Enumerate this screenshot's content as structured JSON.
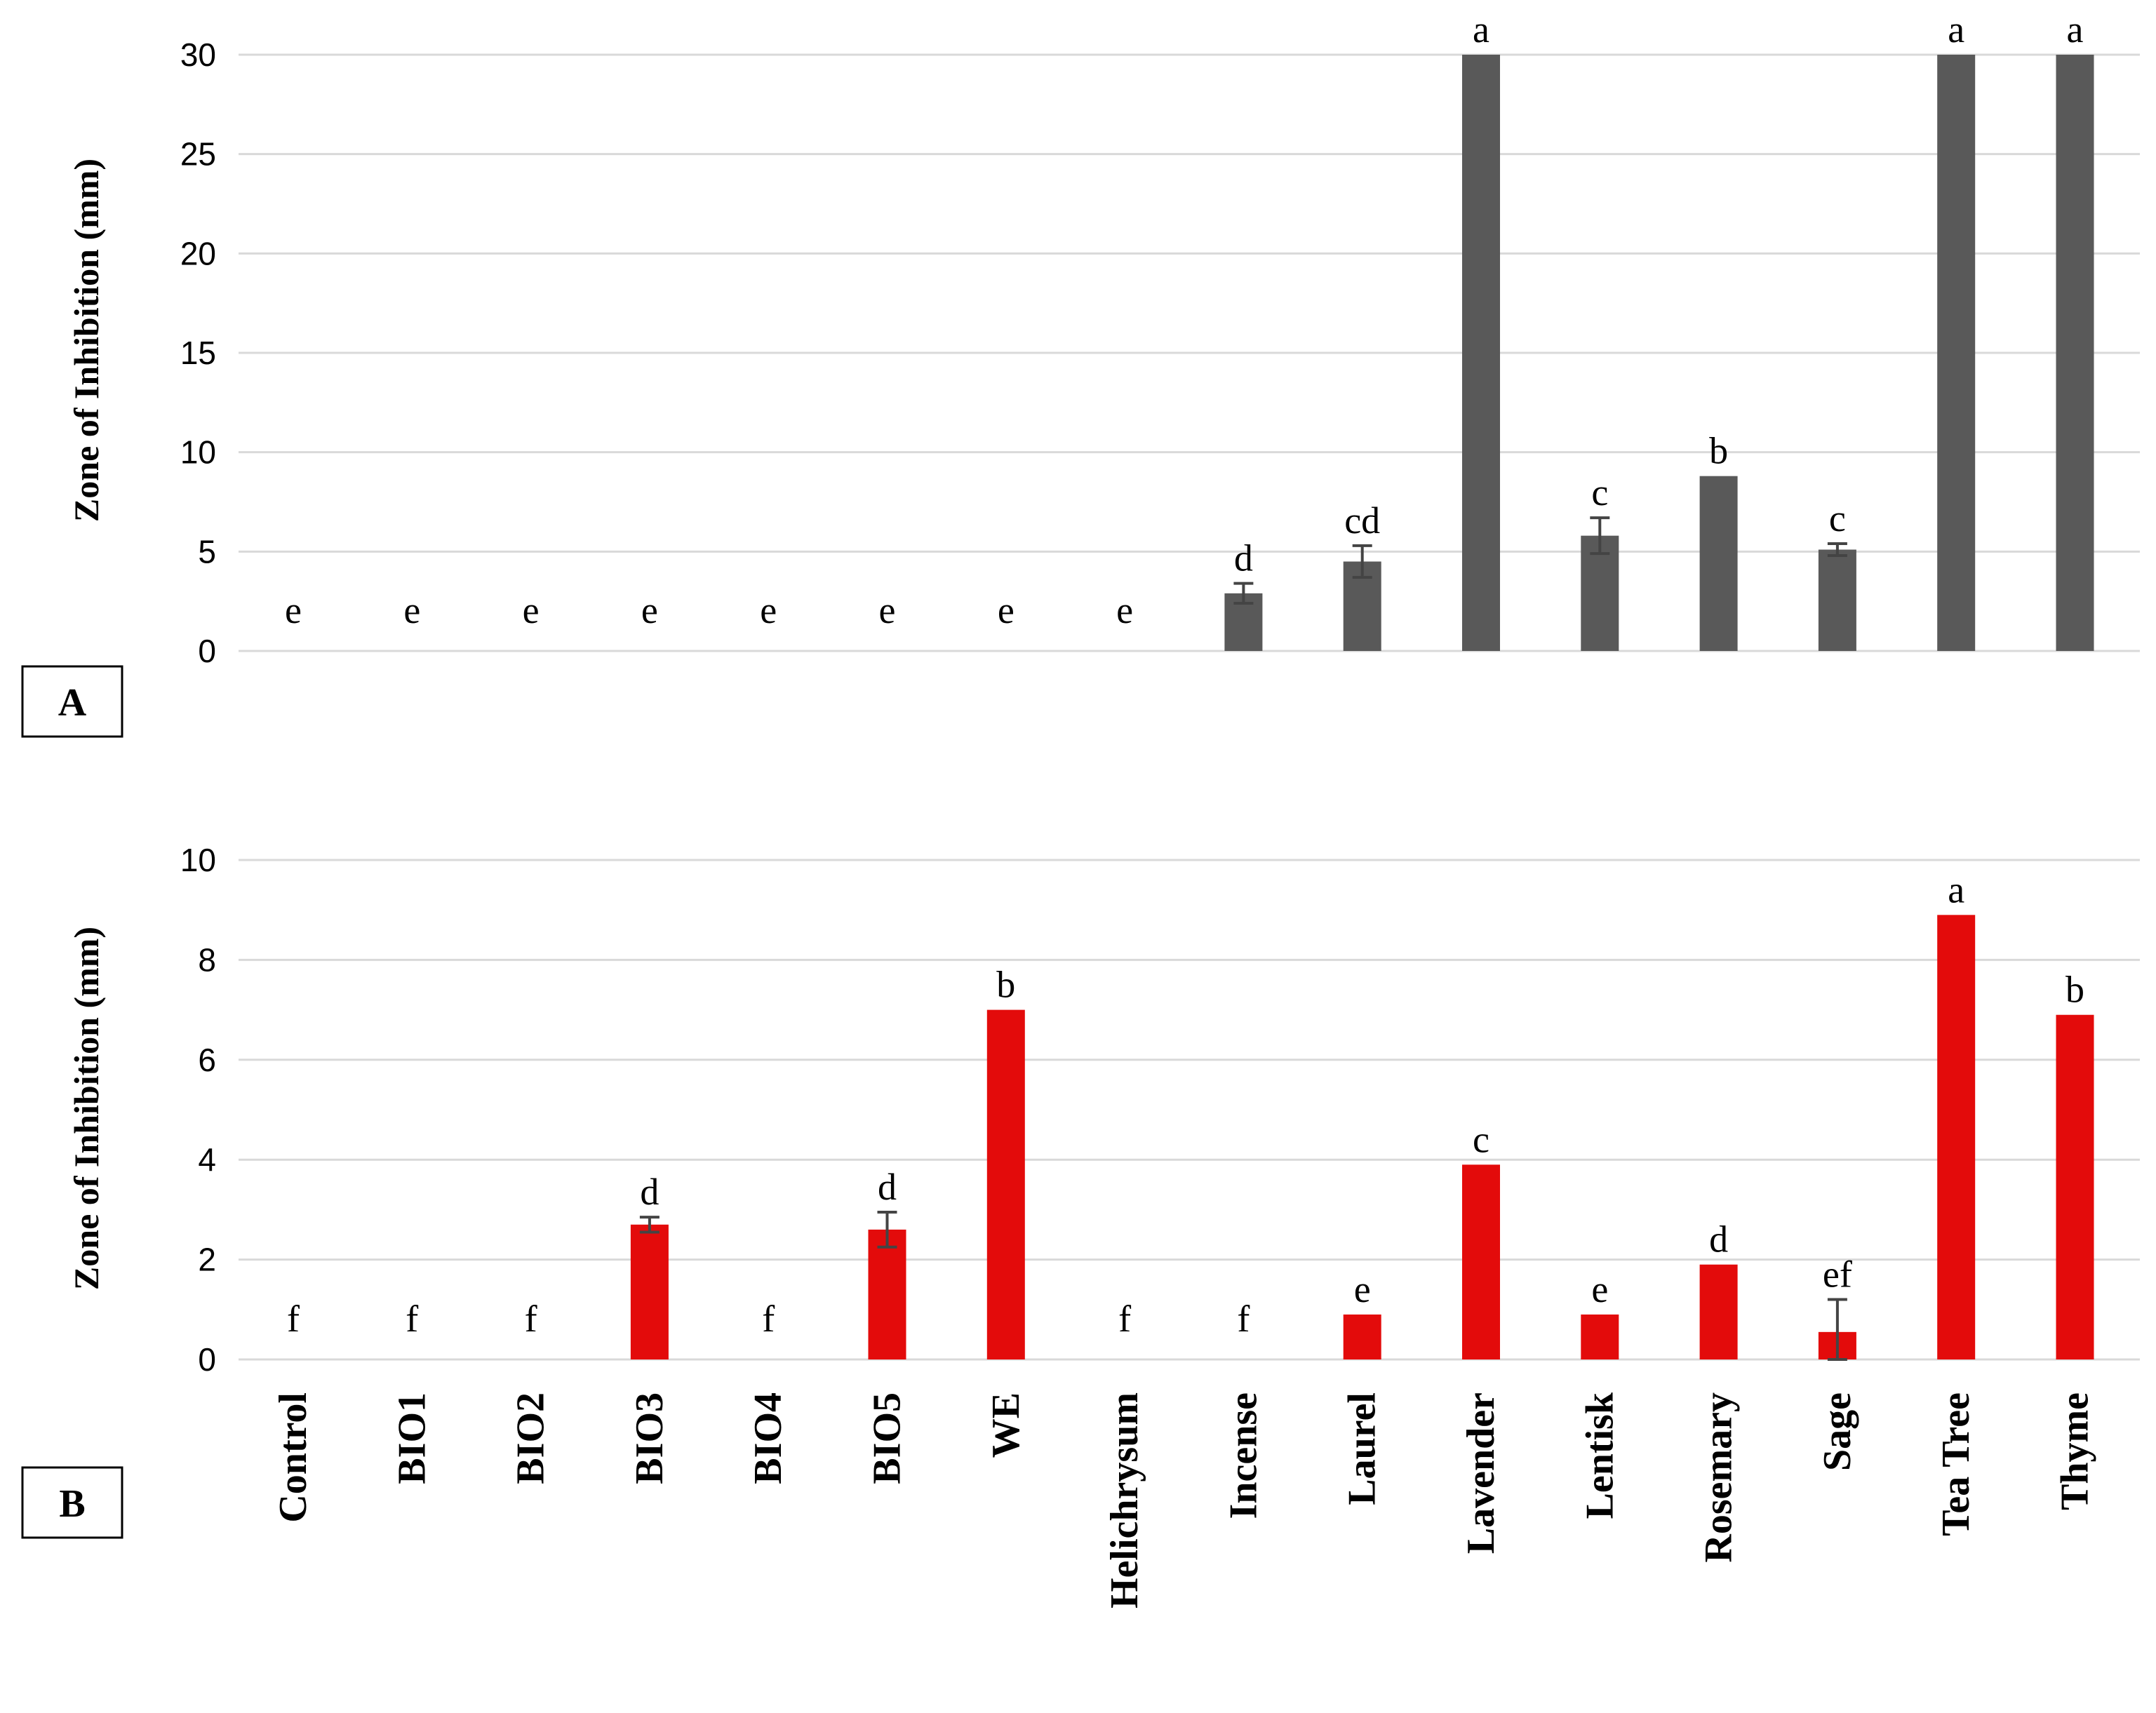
{
  "colors": {
    "panel_A_bar": "#595959",
    "panel_B_bar": "#e30b0b",
    "grid": "#d9d9d9"
  },
  "chart_data": [
    {
      "type": "bar",
      "panel": "A",
      "ylabel": "Zone of Inhibition (mm)",
      "ylim": [
        0,
        30
      ],
      "yticks": [
        0,
        5,
        10,
        15,
        20,
        25,
        30
      ],
      "grid": true,
      "categories": [
        "Control",
        "BIO1",
        "BIO2",
        "BIO3",
        "BIO4",
        "BIO5",
        "WE",
        "Helichrysum",
        "Incense",
        "Laurel",
        "Lavender",
        "Lentisk",
        "Rosemary",
        "Sage",
        "Tea Tree",
        "Thyme"
      ],
      "values": [
        0,
        0,
        0,
        0,
        0,
        0,
        0,
        0,
        2.9,
        4.5,
        30,
        5.8,
        8.8,
        5.1,
        30,
        30
      ],
      "errors": [
        0,
        0,
        0,
        0,
        0,
        0,
        0,
        0,
        0.5,
        0.8,
        0,
        0.9,
        0,
        0.3,
        0,
        0
      ],
      "letters": [
        "e",
        "e",
        "e",
        "e",
        "e",
        "e",
        "e",
        "e",
        "d",
        "cd",
        "a",
        "c",
        "b",
        "c",
        "a",
        "a"
      ]
    },
    {
      "type": "bar",
      "panel": "B",
      "ylabel": "Zone of Inhibition (mm)",
      "ylim": [
        0,
        10
      ],
      "yticks": [
        0,
        2,
        4,
        6,
        8,
        10
      ],
      "grid": true,
      "categories": [
        "Control",
        "BIO1",
        "BIO2",
        "BIO3",
        "BIO4",
        "BIO5",
        "WE",
        "Helichrysum",
        "Incense",
        "Laurel",
        "Lavender",
        "Lentisk",
        "Rosemary",
        "Sage",
        "Tea Tree",
        "Thyme"
      ],
      "values": [
        0,
        0,
        0,
        2.7,
        0,
        2.6,
        7.0,
        0,
        0,
        0.9,
        3.9,
        0.9,
        1.9,
        0.55,
        8.9,
        6.9
      ],
      "errors": [
        0,
        0,
        0,
        0.15,
        0,
        0.35,
        0,
        0,
        0,
        0,
        0,
        0,
        0,
        0.65,
        0,
        0
      ],
      "letters": [
        "f",
        "f",
        "f",
        "d",
        "f",
        "d",
        "b",
        "f",
        "f",
        "e",
        "c",
        "e",
        "d",
        "ef",
        "a",
        "b"
      ]
    }
  ]
}
